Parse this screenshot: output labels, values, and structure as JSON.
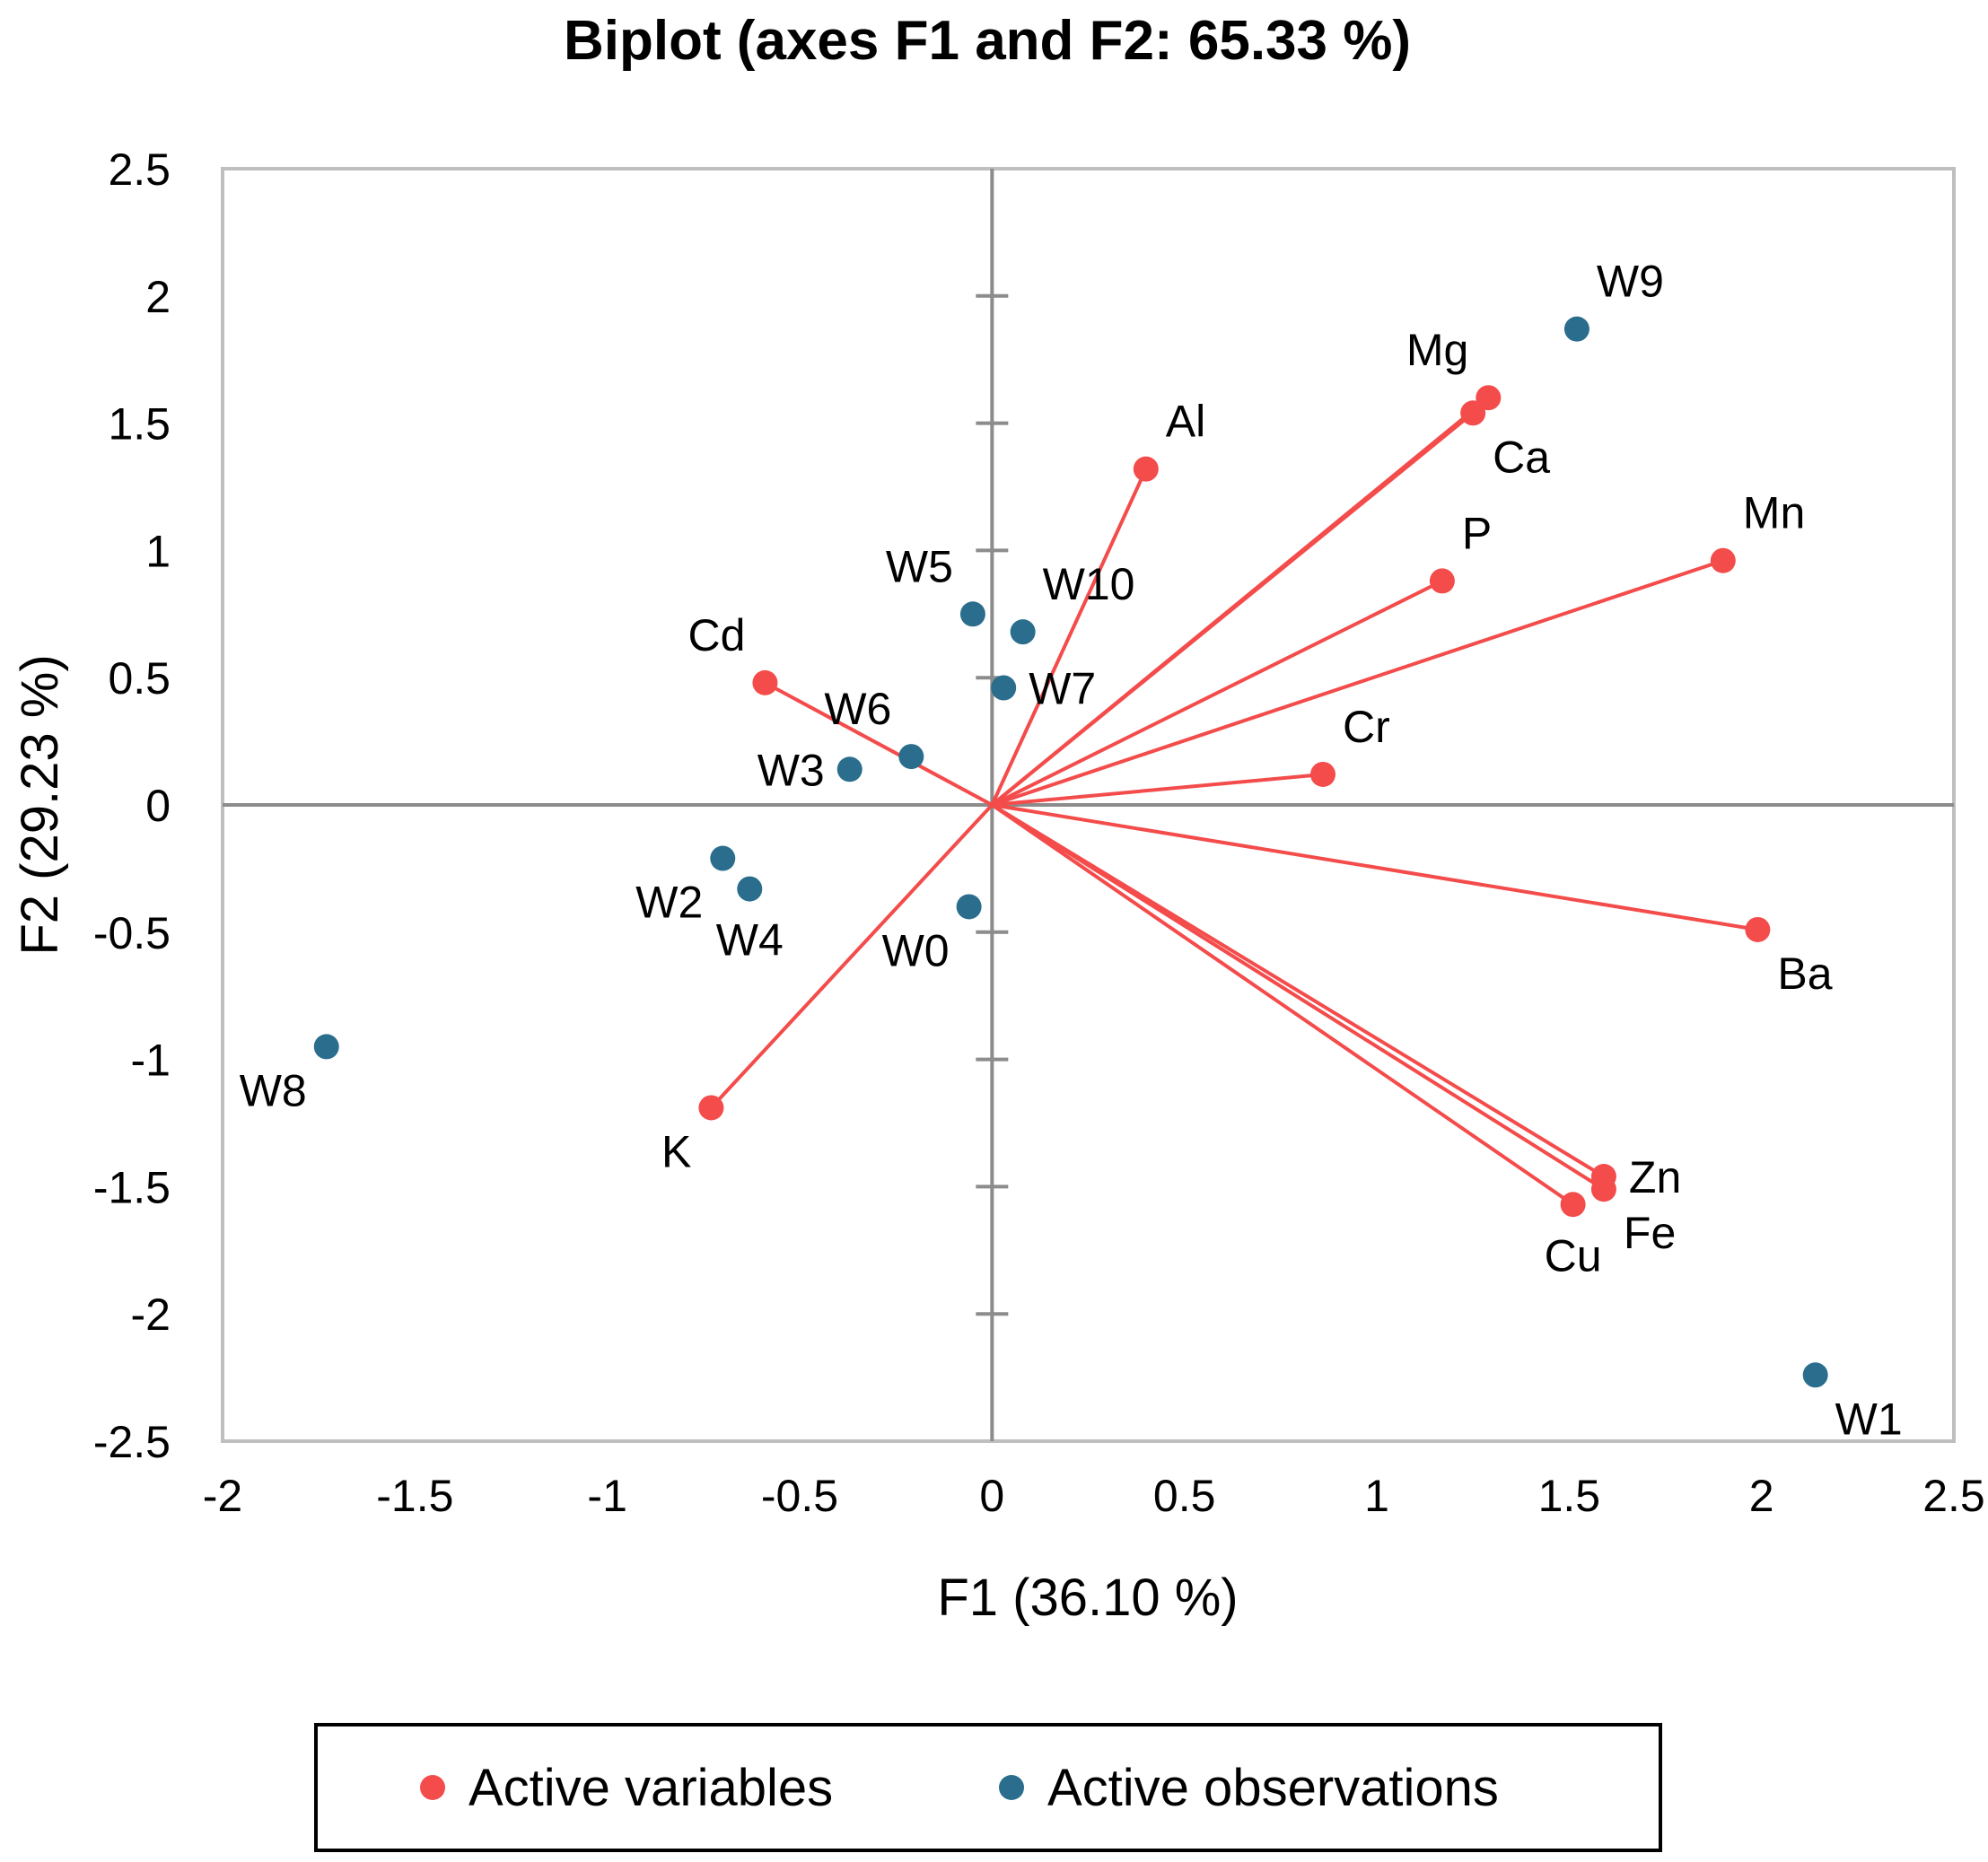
{
  "chart_data": {
    "type": "scatter",
    "title": "Biplot (axes F1 and F2: 65.33 %)",
    "xlabel": "F1 (36.10 %)",
    "ylabel": "F2 (29.23 %)",
    "xlim": [
      -2,
      2.5
    ],
    "ylim": [
      -2.5,
      2.5
    ],
    "x_ticks": [
      -2,
      -1.5,
      -1,
      -0.5,
      0,
      0.5,
      1,
      1.5,
      2,
      2.5
    ],
    "y_ticks": [
      -2.5,
      -2,
      -1.5,
      -1,
      -0.5,
      0,
      0.5,
      1,
      1.5,
      2,
      2.5
    ],
    "x_tick_labels": [
      "-2",
      "-1.5",
      "-1",
      "-0.5",
      "0",
      "0.5",
      "1",
      "1.5",
      "2",
      "2.5"
    ],
    "y_tick_labels": [
      "-2.5",
      "-2",
      "-1.5",
      "-1",
      "-0.5",
      "0",
      "0.5",
      "1",
      "1.5",
      "2",
      "2.5"
    ],
    "grid": false,
    "legend_position": "bottom",
    "colors": {
      "variables": "#f44b4b",
      "observations": "#2a6d8d",
      "axes": "#8c8c8c",
      "frame": "#bfbfbf",
      "text": "#000000"
    },
    "series": [
      {
        "name": "Active variables",
        "color": "#f44b4b",
        "draw_vectors": true,
        "points": [
          {
            "label": "Al",
            "x": 0.4,
            "y": 1.32,
            "label_pos": "above-right"
          },
          {
            "label": "Mg",
            "x": 1.29,
            "y": 1.6,
            "label_pos": "above-left"
          },
          {
            "label": "Ca",
            "x": 1.25,
            "y": 1.54,
            "label_pos": "below-right"
          },
          {
            "label": "P",
            "x": 1.17,
            "y": 0.88,
            "label_pos": "above-right"
          },
          {
            "label": "Mn",
            "x": 1.9,
            "y": 0.96,
            "label_pos": "above-right"
          },
          {
            "label": "Cr",
            "x": 0.86,
            "y": 0.12,
            "label_pos": "above-right"
          },
          {
            "label": "Cd",
            "x": -0.59,
            "y": 0.48,
            "label_pos": "above-left"
          },
          {
            "label": "K",
            "x": -0.73,
            "y": -1.19,
            "label_pos": "below-left"
          },
          {
            "label": "Ba",
            "x": 1.99,
            "y": -0.49,
            "label_pos": "below-right"
          },
          {
            "label": "Zn",
            "x": 1.59,
            "y": -1.46,
            "label_pos": "right"
          },
          {
            "label": "Fe",
            "x": 1.59,
            "y": -1.51,
            "label_pos": "below-right"
          },
          {
            "label": "Cu",
            "x": 1.51,
            "y": -1.57,
            "label_pos": "below"
          }
        ]
      },
      {
        "name": "Active observations",
        "color": "#2a6d8d",
        "draw_vectors": false,
        "points": [
          {
            "label": "W9",
            "x": 1.52,
            "y": 1.87,
            "label_pos": "above-right"
          },
          {
            "label": "W5",
            "x": -0.05,
            "y": 0.75,
            "label_pos": "above-left"
          },
          {
            "label": "W10",
            "x": 0.08,
            "y": 0.68,
            "label_pos": "above-right"
          },
          {
            "label": "W7",
            "x": 0.03,
            "y": 0.46,
            "label_pos": "right"
          },
          {
            "label": "W6",
            "x": -0.21,
            "y": 0.19,
            "label_pos": "above-left"
          },
          {
            "label": "W3",
            "x": -0.37,
            "y": 0.14,
            "label_pos": "left"
          },
          {
            "label": "W2",
            "x": -0.7,
            "y": -0.21,
            "label_pos": "below-left"
          },
          {
            "label": "W4",
            "x": -0.63,
            "y": -0.33,
            "label_pos": "below"
          },
          {
            "label": "W0",
            "x": -0.06,
            "y": -0.4,
            "label_pos": "below-left"
          },
          {
            "label": "W8",
            "x": -1.73,
            "y": -0.95,
            "label_pos": "below-left"
          },
          {
            "label": "W1",
            "x": 2.14,
            "y": -2.24,
            "label_pos": "below-right"
          }
        ]
      }
    ]
  }
}
